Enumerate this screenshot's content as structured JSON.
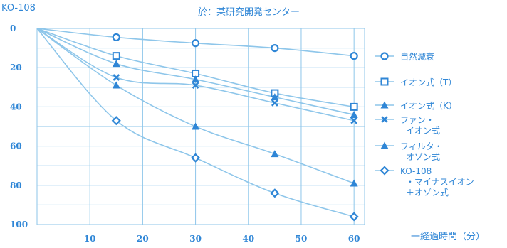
{
  "chart_data": {
    "type": "line",
    "model_label": "KO-108",
    "title": "於：某研究開発センター",
    "xlabel": "一経過時間（分）",
    "ylabel": "",
    "xlim": [
      0,
      62
    ],
    "ylim": [
      0,
      100
    ],
    "y_inverted": true,
    "grid": true,
    "legend_position": "right",
    "x_ticks": [
      "10",
      "20",
      "30",
      "40",
      "50",
      "60"
    ],
    "y_ticks": [
      "0",
      "20",
      "40",
      "60",
      "80",
      "100"
    ],
    "series": [
      {
        "name": "自然減衰",
        "legend_lines": [
          "自然減衰"
        ],
        "marker": "circle",
        "x": [
          0,
          15,
          30,
          45,
          60
        ],
        "y": [
          0,
          4.5,
          7.5,
          10,
          14
        ]
      },
      {
        "name": "イオン式（T）",
        "legend_lines": [
          "イオン式（T）"
        ],
        "marker": "square",
        "x": [
          0,
          15,
          30,
          45,
          60
        ],
        "y": [
          0,
          14,
          23,
          33,
          40
        ]
      },
      {
        "name": "イオン式（K）",
        "legend_lines": [
          "イオン式（K）"
        ],
        "marker": "triangle",
        "x": [
          0,
          15,
          30,
          45,
          60
        ],
        "y": [
          0,
          18,
          26,
          35,
          44
        ]
      },
      {
        "name": "ファン・イオン式",
        "legend_lines": [
          "ファン・",
          "イオン式"
        ],
        "marker": "cross",
        "x": [
          0,
          15,
          30,
          45,
          60
        ],
        "y": [
          0,
          25,
          29,
          38,
          47
        ]
      },
      {
        "name": "フィルタ・オゾン式",
        "legend_lines": [
          "フィルタ・",
          "オゾン式"
        ],
        "marker": "triangle",
        "x": [
          0,
          15,
          30,
          45,
          60
        ],
        "y": [
          0,
          29,
          50,
          64,
          79
        ]
      },
      {
        "name": "KO-108・マイナスイオン＋オゾン式",
        "legend_lines": [
          "KO-108",
          "・マイナスイオン",
          "＋オゾン式"
        ],
        "marker": "diamond",
        "x": [
          0,
          15,
          30,
          45,
          60
        ],
        "y": [
          0,
          47,
          66,
          84,
          96
        ]
      }
    ]
  }
}
